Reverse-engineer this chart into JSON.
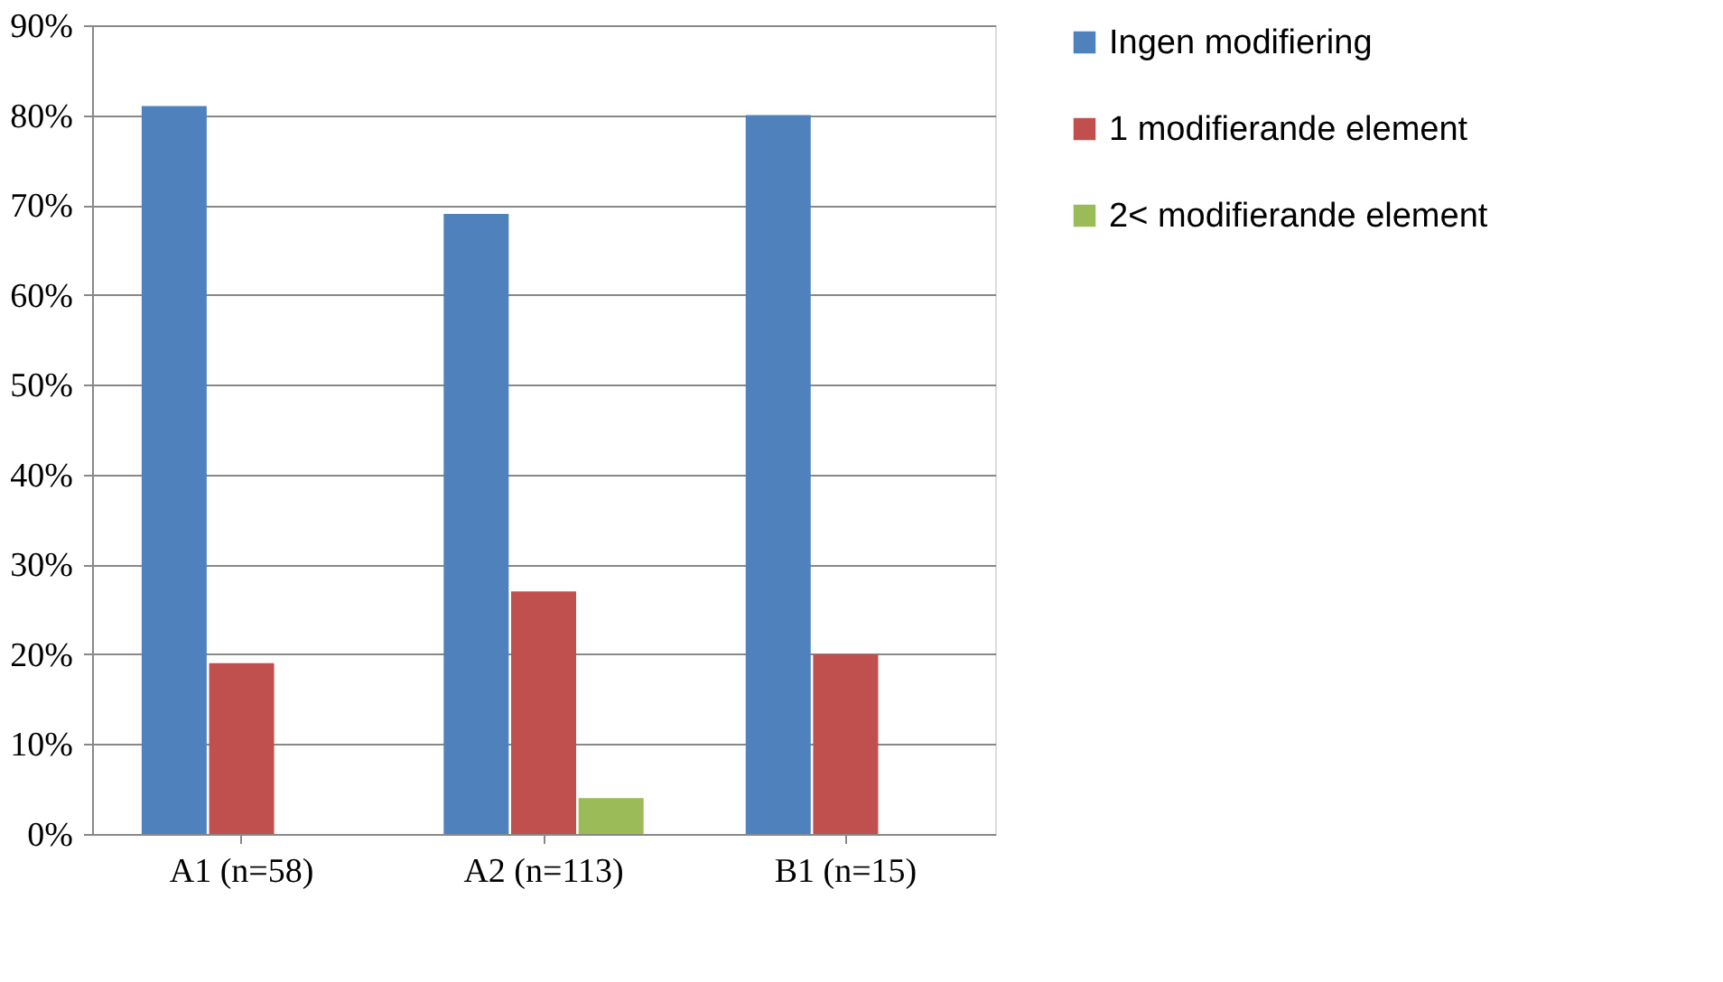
{
  "chart_data": {
    "type": "bar",
    "categories": [
      "A1 (n=58)",
      "A2 (n=113)",
      "B1 (n=15)"
    ],
    "series": [
      {
        "name": "Ingen modifiering",
        "color": "#4f81bd",
        "values": [
          81,
          69,
          80
        ]
      },
      {
        "name": "1 modifierande element",
        "color": "#c0504d",
        "values": [
          19,
          27,
          20
        ]
      },
      {
        "name": "2< modifierande element",
        "color": "#9bbb59",
        "values": [
          null,
          4,
          null
        ]
      }
    ],
    "ylim": [
      0,
      90
    ],
    "yticks": [
      {
        "value": 0,
        "label": "0%"
      },
      {
        "value": 10,
        "label": "10%"
      },
      {
        "value": 20,
        "label": "20%"
      },
      {
        "value": 30,
        "label": "30%"
      },
      {
        "value": 40,
        "label": "40%"
      },
      {
        "value": 50,
        "label": "50%"
      },
      {
        "value": 60,
        "label": "60%"
      },
      {
        "value": 70,
        "label": "70%"
      },
      {
        "value": 80,
        "label": "80%"
      },
      {
        "value": 90,
        "label": "90%"
      }
    ],
    "grid": "y",
    "legend": "right"
  }
}
